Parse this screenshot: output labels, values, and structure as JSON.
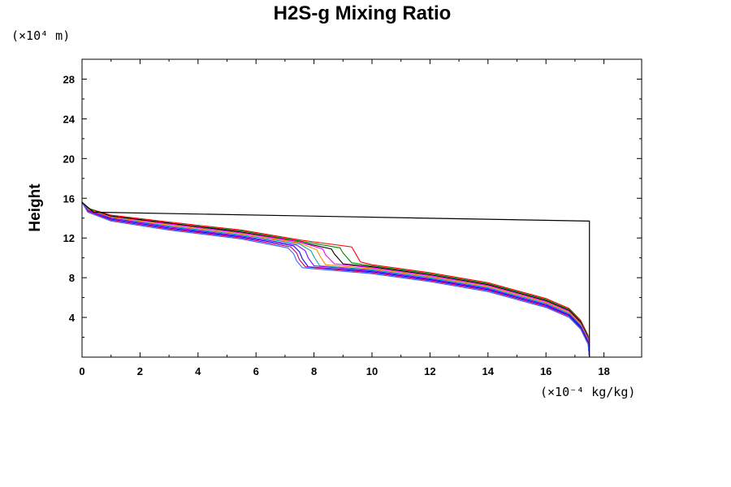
{
  "chart_data": {
    "type": "line",
    "title": "H2S-g Mixing Ratio",
    "ylabel": "Height",
    "y_unit_label": "(×10⁴ m)",
    "x_unit_label": "(×10⁻⁴ kg/kg)",
    "xlim": [
      0,
      19.3
    ],
    "ylim": [
      0,
      30
    ],
    "x_ticks": [
      0,
      2,
      4,
      6,
      8,
      10,
      12,
      14,
      16,
      18
    ],
    "x_tick_labels": [
      "0",
      "2",
      "4",
      "6",
      "8",
      "10",
      "12",
      "14",
      "16",
      "18"
    ],
    "y_ticks": [
      4,
      8,
      12,
      16,
      20,
      24,
      28
    ],
    "y_tick_labels": [
      "4",
      "8",
      "12",
      "16",
      "20",
      "24",
      "28"
    ],
    "grid": false,
    "legend": "none",
    "series_colors": [
      "#ff0000",
      "#008800",
      "#000000",
      "#ff00ff",
      "#ff8800",
      "#00aaaa",
      "#8800ff",
      "#0000ff",
      "#cc0066",
      "#3366ff"
    ],
    "series": [
      {
        "x": [
          17.5,
          17.45,
          17.2,
          16.8,
          16.0,
          14.0,
          12.0,
          10.0,
          9.6,
          9.4,
          9.3,
          7.5,
          5.5,
          3.0,
          1.0,
          0.2,
          0.0
        ],
        "y": [
          0.0,
          2.2,
          3.7,
          4.9,
          5.9,
          7.5,
          8.5,
          9.3,
          9.6,
          10.6,
          11.1,
          11.8,
          12.8,
          13.6,
          14.3,
          15.0,
          15.6
        ]
      },
      {
        "x": [
          17.5,
          17.45,
          17.2,
          16.8,
          16.0,
          14.0,
          12.0,
          10.0,
          9.3,
          9.0,
          8.9,
          7.5,
          5.5,
          3.0,
          1.0,
          0.2,
          0.0
        ],
        "y": [
          0.0,
          2.1,
          3.6,
          4.8,
          5.8,
          7.4,
          8.4,
          9.2,
          9.5,
          10.5,
          11.0,
          11.7,
          12.7,
          13.5,
          14.2,
          15.0,
          15.6
        ]
      },
      {
        "x": [
          17.5,
          17.45,
          17.2,
          16.8,
          16.0,
          14.0,
          12.0,
          10.0,
          9.0,
          8.7,
          8.6,
          7.5,
          5.5,
          3.0,
          1.0,
          0.2,
          0.0
        ],
        "y": [
          0.0,
          2.0,
          3.5,
          4.7,
          5.7,
          7.3,
          8.3,
          9.1,
          9.4,
          10.4,
          10.9,
          11.6,
          12.6,
          13.5,
          14.2,
          14.9,
          15.6
        ]
      },
      {
        "x": [
          17.5,
          17.45,
          17.2,
          16.8,
          16.0,
          14.0,
          12.0,
          10.0,
          8.7,
          8.4,
          8.3,
          7.5,
          5.5,
          3.0,
          1.0,
          0.2,
          0.0
        ],
        "y": [
          0.0,
          1.9,
          3.4,
          4.6,
          5.6,
          7.2,
          8.2,
          9.0,
          9.4,
          10.3,
          10.9,
          11.6,
          12.5,
          13.4,
          14.1,
          14.9,
          15.6
        ]
      },
      {
        "x": [
          17.5,
          17.45,
          17.2,
          16.8,
          16.0,
          14.0,
          12.0,
          10.0,
          8.4,
          8.2,
          8.1,
          7.5,
          5.5,
          3.0,
          1.0,
          0.2,
          0.0
        ],
        "y": [
          0.0,
          1.8,
          3.3,
          4.5,
          5.5,
          7.1,
          8.1,
          8.9,
          9.3,
          10.2,
          10.8,
          11.5,
          12.4,
          13.3,
          14.1,
          14.9,
          15.6
        ]
      },
      {
        "x": [
          17.5,
          17.45,
          17.2,
          16.8,
          16.0,
          14.0,
          12.0,
          10.0,
          8.2,
          8.0,
          7.9,
          7.5,
          5.5,
          3.0,
          1.0,
          0.2,
          0.0
        ],
        "y": [
          0.0,
          1.7,
          3.2,
          4.4,
          5.4,
          7.0,
          8.0,
          8.8,
          9.2,
          10.1,
          10.7,
          11.4,
          12.3,
          13.2,
          14.0,
          14.8,
          15.6
        ]
      },
      {
        "x": [
          17.5,
          17.45,
          17.2,
          16.8,
          16.0,
          14.0,
          12.0,
          10.0,
          8.0,
          7.8,
          7.7,
          7.4,
          5.5,
          3.0,
          1.0,
          0.2,
          0.0
        ],
        "y": [
          0.0,
          1.6,
          3.1,
          4.3,
          5.3,
          6.9,
          7.9,
          8.7,
          9.2,
          10.0,
          10.7,
          11.3,
          12.2,
          13.1,
          14.0,
          14.8,
          15.6
        ]
      },
      {
        "x": [
          17.5,
          17.45,
          17.2,
          16.8,
          16.0,
          14.0,
          12.0,
          10.0,
          7.8,
          7.6,
          7.5,
          7.3,
          5.5,
          3.0,
          1.0,
          0.2,
          0.0
        ],
        "y": [
          0.0,
          1.5,
          3.0,
          4.2,
          5.2,
          6.8,
          7.8,
          8.6,
          9.1,
          9.9,
          10.6,
          11.2,
          12.1,
          13.0,
          13.9,
          14.7,
          15.6
        ]
      },
      {
        "x": [
          17.5,
          17.45,
          17.2,
          16.8,
          16.0,
          14.0,
          12.0,
          10.0,
          7.7,
          7.5,
          7.4,
          7.2,
          5.5,
          3.0,
          1.0,
          0.2,
          0.0
        ],
        "y": [
          0.0,
          1.4,
          2.9,
          4.1,
          5.1,
          6.7,
          7.7,
          8.5,
          9.1,
          9.8,
          10.5,
          11.1,
          12.0,
          12.9,
          13.8,
          14.7,
          15.6
        ]
      },
      {
        "x": [
          17.5,
          17.45,
          17.2,
          16.8,
          16.0,
          14.0,
          12.0,
          10.0,
          7.6,
          7.4,
          7.3,
          7.1,
          5.5,
          3.0,
          1.0,
          0.2,
          0.0
        ],
        "y": [
          0.0,
          1.3,
          2.8,
          4.0,
          5.0,
          6.6,
          7.6,
          8.4,
          9.0,
          9.7,
          10.4,
          11.0,
          11.9,
          12.8,
          13.7,
          14.6,
          15.6
        ]
      },
      {
        "x": [
          17.5,
          17.5,
          17.5,
          0.4,
          0.0
        ],
        "y": [
          0.0,
          10.0,
          13.7,
          14.6,
          15.6
        ]
      }
    ]
  }
}
